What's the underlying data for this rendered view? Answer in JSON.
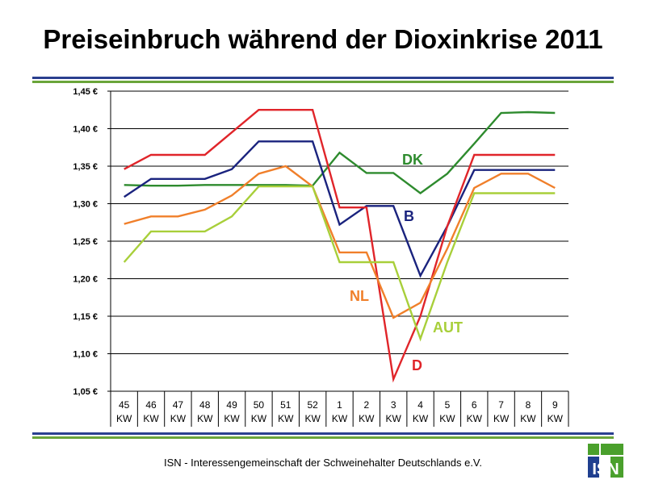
{
  "title": "Preiseinbruch während der Dioxinkrise 2011",
  "footer": "ISN - Interessengemeinschaft der Schweinehalter Deutschlands e.V.",
  "logo": {
    "text": "ISN",
    "colors": {
      "green": "#4aa02c",
      "blue": "#1f3f8f"
    }
  },
  "colors": {
    "rule_blue": "#2a3f8f",
    "rule_green": "#6aa53a"
  },
  "chart_data": {
    "type": "line",
    "categories": [
      "45 KW",
      "46 KW",
      "47 KW",
      "48 KW",
      "49 KW",
      "50 KW",
      "51 KW",
      "52 KW",
      "1 KW",
      "2 KW",
      "3 KW",
      "4 KW",
      "5 KW",
      "6 KW",
      "7 KW",
      "8 KW",
      "9 KW"
    ],
    "category_week": [
      "45",
      "46",
      "47",
      "48",
      "49",
      "50",
      "51",
      "52",
      "1",
      "2",
      "3",
      "4",
      "5",
      "6",
      "7",
      "8",
      "9"
    ],
    "category_unit": "KW",
    "ylim": [
      1.05,
      1.45
    ],
    "yticks": [
      "1,05 €",
      "1,10 €",
      "1,15 €",
      "1,20 €",
      "1,25 €",
      "1,30 €",
      "1,35 €",
      "1,40 €",
      "1,45 €"
    ],
    "ytick_values": [
      1.05,
      1.1,
      1.15,
      1.2,
      1.25,
      1.3,
      1.35,
      1.4,
      1.45
    ],
    "grid": true,
    "series": [
      {
        "name": "DK",
        "color": "#2e8b2e",
        "values": [
          1.325,
          1.324,
          1.324,
          1.325,
          1.325,
          1.325,
          1.325,
          1.324,
          1.368,
          1.341,
          1.341,
          1.314,
          1.34,
          1.38,
          1.421,
          1.422,
          1.421
        ]
      },
      {
        "name": "B",
        "color": "#1a237e",
        "values": [
          1.309,
          1.333,
          1.333,
          1.333,
          1.346,
          1.383,
          1.383,
          1.383,
          1.272,
          1.297,
          1.297,
          1.204,
          1.27,
          1.345,
          1.345,
          1.345,
          1.345
        ]
      },
      {
        "name": "D",
        "color": "#e0252a",
        "values": [
          1.346,
          1.365,
          1.365,
          1.365,
          1.395,
          1.425,
          1.425,
          1.425,
          1.295,
          1.295,
          1.066,
          1.15,
          1.27,
          1.365,
          1.365,
          1.365,
          1.365
        ]
      },
      {
        "name": "NL",
        "color": "#f07f2a",
        "values": [
          1.273,
          1.283,
          1.283,
          1.292,
          1.311,
          1.34,
          1.35,
          1.323,
          1.235,
          1.235,
          1.148,
          1.168,
          1.24,
          1.321,
          1.34,
          1.34,
          1.321
        ]
      },
      {
        "name": "AUT",
        "color": "#a8cf3a",
        "values": [
          1.222,
          1.263,
          1.263,
          1.263,
          1.283,
          1.323,
          1.323,
          1.323,
          1.222,
          1.222,
          1.222,
          1.12,
          1.222,
          1.314,
          1.314,
          1.314,
          1.314
        ]
      }
    ]
  }
}
